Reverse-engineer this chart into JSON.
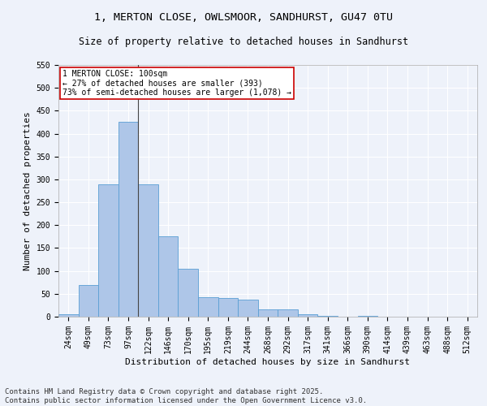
{
  "title_line1": "1, MERTON CLOSE, OWLSMOOR, SANDHURST, GU47 0TU",
  "title_line2": "Size of property relative to detached houses in Sandhurst",
  "xlabel": "Distribution of detached houses by size in Sandhurst",
  "ylabel": "Number of detached properties",
  "categories": [
    "24sqm",
    "49sqm",
    "73sqm",
    "97sqm",
    "122sqm",
    "146sqm",
    "170sqm",
    "195sqm",
    "219sqm",
    "244sqm",
    "268sqm",
    "292sqm",
    "317sqm",
    "341sqm",
    "366sqm",
    "390sqm",
    "414sqm",
    "439sqm",
    "463sqm",
    "488sqm",
    "512sqm"
  ],
  "values": [
    5,
    70,
    290,
    425,
    290,
    175,
    105,
    42,
    40,
    38,
    16,
    16,
    6,
    1,
    0,
    1,
    0,
    0,
    0,
    0,
    0
  ],
  "bar_color": "#aec6e8",
  "bar_edge_color": "#5a9fd4",
  "annotation_box_text": "1 MERTON CLOSE: 100sqm\n← 27% of detached houses are smaller (393)\n73% of semi-detached houses are larger (1,078) →",
  "annotation_box_color": "#ffffff",
  "annotation_box_edge_color": "#cc0000",
  "vline_x_index": 3.5,
  "vline_color": "#444444",
  "ylim": [
    0,
    550
  ],
  "yticks": [
    0,
    50,
    100,
    150,
    200,
    250,
    300,
    350,
    400,
    450,
    500,
    550
  ],
  "background_color": "#eef2fa",
  "grid_color": "#ffffff",
  "footer_line1": "Contains HM Land Registry data © Crown copyright and database right 2025.",
  "footer_line2": "Contains public sector information licensed under the Open Government Licence v3.0.",
  "title_fontsize": 9.5,
  "subtitle_fontsize": 8.5,
  "axis_label_fontsize": 8,
  "tick_fontsize": 7,
  "annotation_fontsize": 7,
  "footer_fontsize": 6.5
}
